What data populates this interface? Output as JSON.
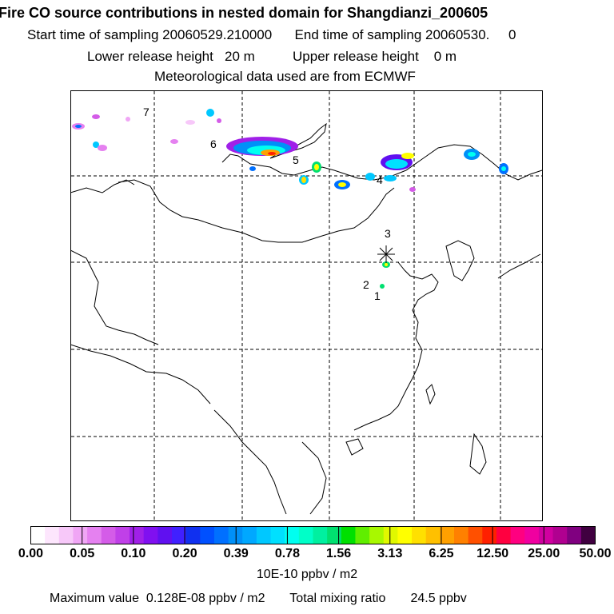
{
  "title": {
    "line1": "Fire CO source contributions in nested domain for Shangdianzi_200605",
    "line2": "Start time of sampling 20060529.210000      End time of sampling 20060530.     0",
    "line3": "Lower release height   20 m          Upper release height    0 m",
    "line4": "Meteorological data used are from ECMWF"
  },
  "map": {
    "track_labels": [
      "1",
      "2",
      "3",
      "4",
      "5",
      "6",
      "7"
    ],
    "station_marker": "receptor-star"
  },
  "legend": {
    "tick_labels": [
      "0.00",
      "0.05",
      "0.10",
      "0.20",
      "0.39",
      "0.78",
      "1.56",
      "3.13",
      "6.25",
      "12.50",
      "25.00",
      "50.00"
    ],
    "colors": [
      "#ffffff",
      "#fde6fd",
      "#f7c8f9",
      "#f0a6f5",
      "#e581f0",
      "#d45ce8",
      "#c040e8",
      "#a020e8",
      "#8010f0",
      "#6010f0",
      "#4020ff",
      "#1030f0",
      "#0050ff",
      "#0070ff",
      "#0090f8",
      "#00a8ff",
      "#00c8ff",
      "#00e0ff",
      "#00fff0",
      "#00ffc8",
      "#00f0a0",
      "#00e070",
      "#00e000",
      "#60ee00",
      "#a8f800",
      "#e0f800",
      "#ffff00",
      "#ffe000",
      "#ffc000",
      "#ffa000",
      "#ff8000",
      "#ff5000",
      "#ff2000",
      "#ff0040",
      "#ff0080",
      "#f000a0",
      "#d000a0",
      "#b00090",
      "#800080",
      "#400040"
    ],
    "units": "10E-10 ppbv / m2"
  },
  "footer": {
    "text": "Maximum value  0.128E-08 ppbv / m2       Total mixing ratio       24.5 ppbv"
  }
}
